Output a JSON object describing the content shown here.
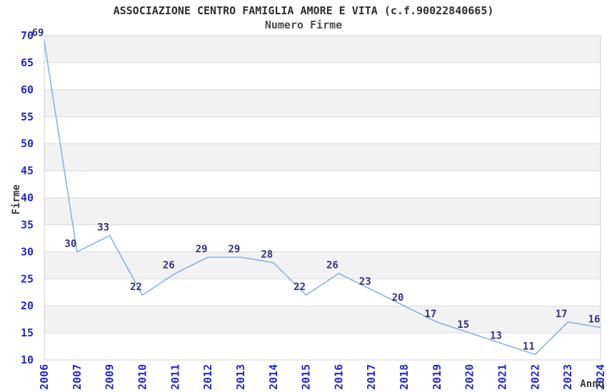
{
  "chart_data": {
    "type": "line",
    "title": "ASSOCIAZIONE CENTRO FAMIGLIA AMORE E VITA (c.f.90022840665)",
    "subtitle": "Numero Firme",
    "xlabel": "Anno",
    "ylabel": "Firme",
    "categories": [
      "2006",
      "2007",
      "2009",
      "2010",
      "2011",
      "2012",
      "2013",
      "2014",
      "2015",
      "2016",
      "2017",
      "2018",
      "2019",
      "2020",
      "2021",
      "2022",
      "2023",
      "2024"
    ],
    "values": [
      69,
      30,
      33,
      22,
      26,
      29,
      29,
      28,
      22,
      26,
      23,
      20,
      17,
      15,
      13,
      11,
      17,
      16
    ],
    "ylim": [
      10,
      70
    ],
    "ytick_step": 5,
    "yticks": [
      10,
      15,
      20,
      25,
      30,
      35,
      40,
      45,
      50,
      55,
      60,
      65,
      70
    ],
    "grid": true,
    "banded_rows": true,
    "legend_position": "none",
    "x_tick_rotation": -90,
    "data_labels_shown": true,
    "colors": {
      "line": "#7fb0e6",
      "tick_label": "#2626cf",
      "data_label": "#333380",
      "band": "#f2f2f2",
      "gridline": "#dcdcdc",
      "plot_border": "#d0d0d0",
      "title": "#2e2e2e",
      "subtitle": "#4d4d4d",
      "axis_title": "#3a3a3a",
      "background": "#ffffff"
    }
  }
}
